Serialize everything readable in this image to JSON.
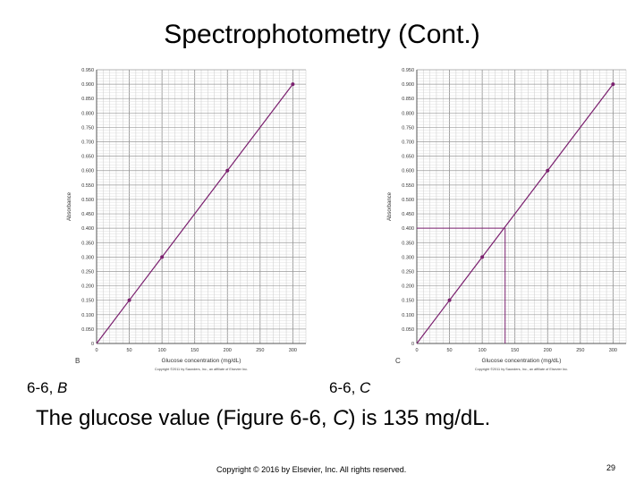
{
  "slide": {
    "title": "Spectrophotometry (Cont.)",
    "caption_b_prefix": "6-6, ",
    "caption_b_letter": "B",
    "caption_c_prefix": "6-6, ",
    "caption_c_letter": "C",
    "statement_part1": "The glucose value (Figure 6-6, ",
    "statement_italic": "C",
    "statement_part2": ") is 135 mg/dL.",
    "copyright": "Copyright © 2016 by Elsevier, Inc. All rights reserved.",
    "page_number": "29"
  },
  "chart_data": [
    {
      "type": "line",
      "panel_letter": "B",
      "xlabel": "Glucose concentration (mg/dL)",
      "ylabel": "Absorbance",
      "xlim": [
        0,
        320
      ],
      "ylim": [
        0,
        0.95
      ],
      "x_ticks": [
        0,
        50,
        100,
        150,
        200,
        250,
        300
      ],
      "y_ticks": [
        0.0,
        0.05,
        0.1,
        0.15,
        0.2,
        0.25,
        0.3,
        0.35,
        0.4,
        0.45,
        0.5,
        0.55,
        0.6,
        0.65,
        0.7,
        0.75,
        0.8,
        0.85,
        0.9,
        0.95
      ],
      "y_tick_labels": [
        "0",
        "0.050",
        "0.100",
        "0.150",
        "0.200",
        "0.250",
        "0.300",
        "0.350",
        "0.400",
        "0.450",
        "0.500",
        "0.550",
        "0.600",
        "0.650",
        "0.700",
        "0.750",
        "0.800",
        "0.850",
        "0.900",
        "0.950"
      ],
      "grid": true,
      "line_color": "#7a1f6e",
      "series": [
        {
          "x": [
            0,
            50,
            100,
            200,
            300
          ],
          "y": [
            0.0,
            0.15,
            0.3,
            0.6,
            0.9
          ]
        }
      ],
      "footer": "Copyright ©2011 by Saunders, Inc., an affiliate of Elsevier Inc."
    },
    {
      "type": "line",
      "panel_letter": "C",
      "xlabel": "Glucose concentration (mg/dL)",
      "ylabel": "Absorbance",
      "xlim": [
        0,
        320
      ],
      "ylim": [
        0,
        0.95
      ],
      "x_ticks": [
        0,
        50,
        100,
        150,
        200,
        250,
        300
      ],
      "y_ticks": [
        0.0,
        0.05,
        0.1,
        0.15,
        0.2,
        0.25,
        0.3,
        0.35,
        0.4,
        0.45,
        0.5,
        0.55,
        0.6,
        0.65,
        0.7,
        0.75,
        0.8,
        0.85,
        0.9,
        0.95
      ],
      "y_tick_labels": [
        "0",
        "0.050",
        "0.100",
        "0.150",
        "0.200",
        "0.250",
        "0.300",
        "0.350",
        "0.400",
        "0.450",
        "0.500",
        "0.550",
        "0.600",
        "0.650",
        "0.700",
        "0.750",
        "0.800",
        "0.850",
        "0.900",
        "0.950"
      ],
      "grid": true,
      "line_color": "#7a1f6e",
      "series": [
        {
          "x": [
            0,
            50,
            100,
            200,
            300
          ],
          "y": [
            0.0,
            0.15,
            0.3,
            0.6,
            0.9
          ]
        }
      ],
      "reading": {
        "absorbance": 0.4,
        "concentration": 135
      },
      "footer": "Copyright ©2011 by Saunders, Inc., an affiliate of Elsevier Inc."
    }
  ]
}
